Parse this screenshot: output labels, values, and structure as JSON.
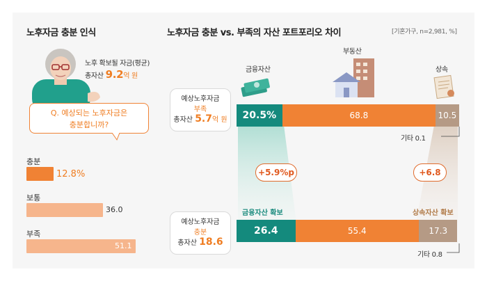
{
  "left": {
    "title": "노후자금 충분 인식",
    "avatar_label": "노후 확보될 자금(평균)",
    "avatar_total_prefix": "총자산",
    "avatar_total_value": "9.2",
    "avatar_total_unit": "억 원",
    "question_line1": "Q. 예상되는 노후자금은",
    "question_line2": "충분합니까?",
    "bars": [
      {
        "label": "충분",
        "value": 12.8,
        "display": "12.8%"
      },
      {
        "label": "보통",
        "value": 36.0,
        "display": "36.0"
      },
      {
        "label": "부족",
        "value": 51.1,
        "display": "51.1"
      }
    ]
  },
  "right": {
    "title": "노후자금 충분 vs. 부족의 자산 포트포리오 차이",
    "note": "[기혼가구, n=2,981, %]",
    "categories": {
      "financial": "금융자산",
      "real_estate": "부동산",
      "inheritance": "상속"
    },
    "insufficient_box": {
      "line1": "예상노후자금",
      "line2": "부족",
      "total_prefix": "총자산",
      "total_value": "5.7",
      "total_unit": "억 원"
    },
    "sufficient_box": {
      "line1": "예상노후자금",
      "line2": "충분",
      "total_prefix": "총자산",
      "total_value": "18.6"
    },
    "diff_financial": "+5.9%p",
    "diff_inheritance": "+6.8",
    "highlight_financial": "금융자산 확보",
    "highlight_inheritance": "상속자산 확보",
    "other_top": "기타 0.1",
    "other_bottom": "기타 0.8"
  },
  "chart_data": [
    {
      "type": "bar",
      "title": "노후자금 충분 인식",
      "categories": [
        "충분",
        "보통",
        "부족"
      ],
      "values": [
        12.8,
        36.0,
        51.1
      ]
    },
    {
      "type": "bar",
      "title": "노후자금 충분 vs. 부족의 자산 포트포리오 차이",
      "categories": [
        "예상노후자금 부족",
        "예상노후자금 충분"
      ],
      "series": [
        {
          "name": "금융자산",
          "values": [
            20.5,
            26.4
          ],
          "display": [
            "20.5%",
            "26.4"
          ]
        },
        {
          "name": "부동산",
          "values": [
            68.8,
            55.4
          ],
          "display": [
            "68.8",
            "55.4"
          ]
        },
        {
          "name": "상속",
          "values": [
            10.5,
            17.3
          ],
          "display": [
            "10.5",
            "17.3"
          ]
        },
        {
          "name": "기타",
          "values": [
            0.1,
            0.8
          ]
        }
      ],
      "colors": {
        "financial": "#148a7d",
        "real_estate": "#f08234",
        "inheritance": "#b59a85"
      }
    }
  ]
}
